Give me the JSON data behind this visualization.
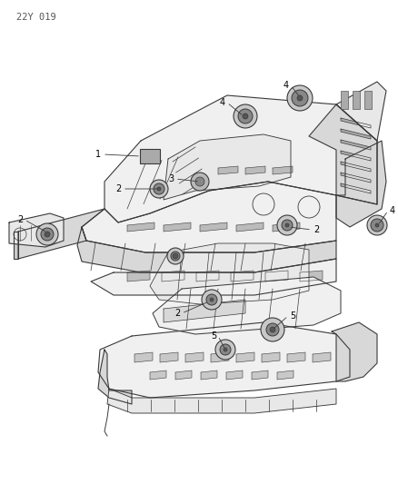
{
  "bg_color": "#ffffff",
  "line_color": "#3a3a3a",
  "thin_lw": 0.6,
  "main_lw": 0.8,
  "label_fs": 7,
  "header": "22Y 019",
  "fig_w": 4.39,
  "fig_h": 5.33,
  "dpi": 100,
  "plug_colors": {
    "outer": "#c8c8c8",
    "inner": "#888888",
    "center": "#555555"
  },
  "flat_plug_color": "#aaaaaa",
  "body_fill": "#f0f0f0",
  "body_fill2": "#e8e8e8",
  "shadow_fill": "#d8d8d8"
}
